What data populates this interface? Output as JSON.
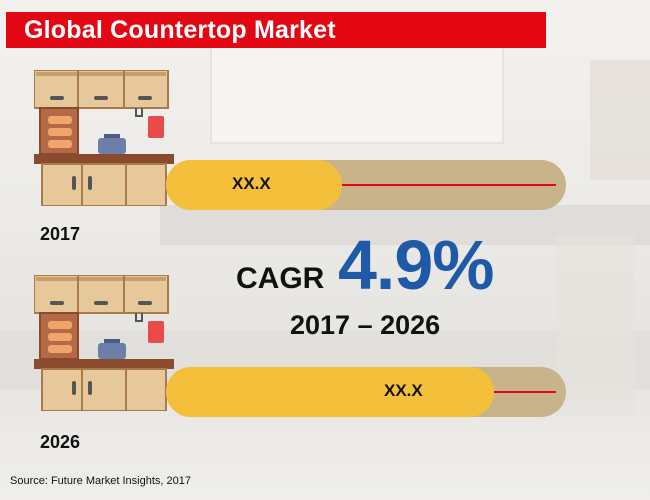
{
  "title": "Global Countertop Market",
  "chart_data": {
    "type": "bar",
    "categories": [
      "2017",
      "2026"
    ],
    "bar_labels": [
      "XX.X",
      "XX.X"
    ],
    "fill_fractions": [
      0.44,
      0.82
    ],
    "cagr_label": "CAGR",
    "cagr_value": "4.9%",
    "cagr_period": "2017 – 2026"
  },
  "source": "Source: Future Market Insights, 2017",
  "colors": {
    "title_bg": "#e30613",
    "bar_fill": "#f4bf3a",
    "bar_track": "#c8b38a",
    "cagr_value": "#1f5aa8",
    "line": "#e30613"
  },
  "icons": [
    "kitchen-cabinet-icon"
  ]
}
